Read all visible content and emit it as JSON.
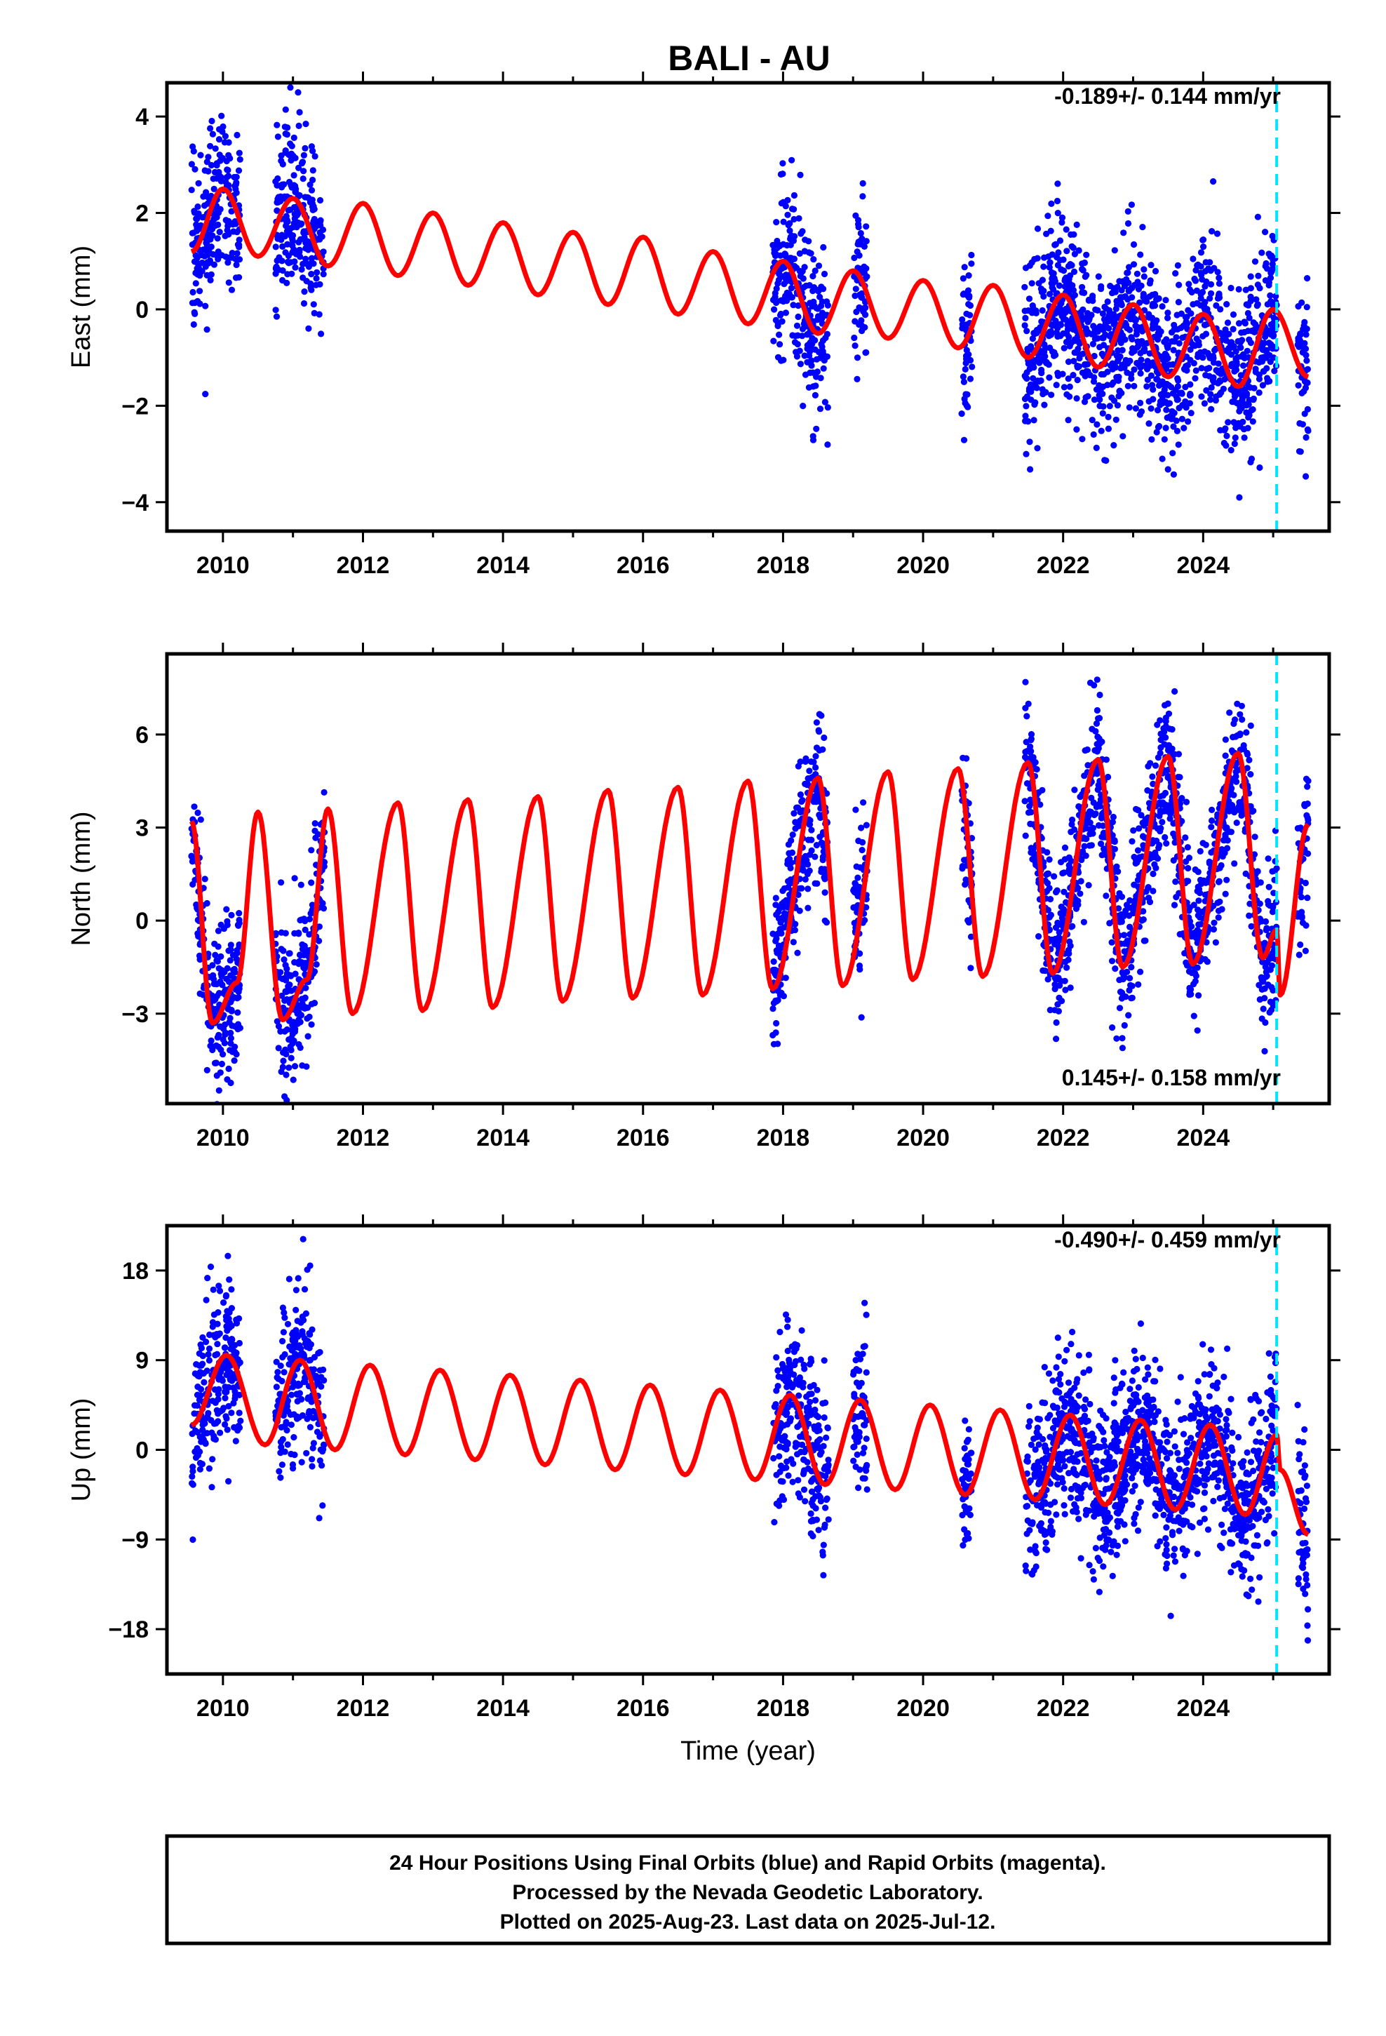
{
  "title": "BALI - AU",
  "footer": {
    "line1": "24 Hour Positions Using Final Orbits (blue) and Rapid Orbits (magenta).",
    "line2": "Processed by the Nevada Geodetic Laboratory.",
    "line3": "Plotted on 2025-Aug-23. Last data on 2025-Jul-12."
  },
  "colors": {
    "data": "#0000ff",
    "model": "#ff0000",
    "marker": "#00e5ff",
    "frame": "#000000"
  },
  "chart_data": [
    {
      "type": "scatter",
      "ylabel": "East (mm)",
      "xlabel": "",
      "rate": "-0.189+/- 0.144 mm/yr",
      "xlim": [
        2009.2,
        2025.8
      ],
      "ylim": [
        -4.6,
        4.7
      ],
      "yticks": [
        4,
        2,
        0,
        -2,
        -4
      ],
      "yticklabels": [
        "4",
        "2",
        "0",
        "−2",
        "−4"
      ],
      "xticks": [
        2010,
        2012,
        2014,
        2016,
        2018,
        2020,
        2022,
        2024
      ],
      "xticklabels": [
        "2010",
        "2012",
        "2014",
        "2016",
        "2018",
        "2020",
        "2022",
        "2024"
      ],
      "marker_x": 2025.05,
      "legend": "none",
      "series": [
        {
          "kind": "observations",
          "segments": [
            [
              2009.55,
              2010.25
            ],
            [
              2010.75,
              2011.45
            ],
            [
              2017.85,
              2018.65
            ],
            [
              2019.0,
              2019.2
            ],
            [
              2020.55,
              2020.7
            ],
            [
              2021.45,
              2025.05
            ],
            [
              2025.35,
              2025.5
            ]
          ]
        },
        {
          "kind": "model",
          "x": [
            2009.55,
            2010.0,
            2010.5,
            2011.0,
            2011.5,
            2012.0,
            2012.5,
            2013.0,
            2013.5,
            2014.0,
            2014.5,
            2015.0,
            2015.5,
            2016.0,
            2016.5,
            2017.0,
            2017.5,
            2018.0,
            2018.5,
            2019.0,
            2019.5,
            2020.0,
            2020.5,
            2021.0,
            2021.5,
            2022.0,
            2022.5,
            2023.0,
            2023.5,
            2024.0,
            2024.5,
            2025.0,
            2025.5
          ],
          "y": [
            1.2,
            2.5,
            1.1,
            2.3,
            0.9,
            2.2,
            0.7,
            2.0,
            0.5,
            1.8,
            0.3,
            1.6,
            0.1,
            1.5,
            -0.1,
            1.2,
            -0.3,
            1.0,
            -0.5,
            0.8,
            -0.6,
            0.6,
            -0.8,
            0.5,
            -1.0,
            0.3,
            -1.2,
            0.1,
            -1.4,
            -0.1,
            -1.6,
            0.0,
            -1.4
          ]
        }
      ]
    },
    {
      "type": "scatter",
      "ylabel": "North (mm)",
      "xlabel": "",
      "rate": "0.145+/- 0.158 mm/yr",
      "xlim": [
        2009.2,
        2025.8
      ],
      "ylim": [
        -5.9,
        8.6
      ],
      "yticks": [
        6,
        3,
        0,
        -3
      ],
      "yticklabels": [
        "6",
        "3",
        "0",
        "−3"
      ],
      "xticks": [
        2010,
        2012,
        2014,
        2016,
        2018,
        2020,
        2022,
        2024
      ],
      "xticklabels": [
        "2010",
        "2012",
        "2014",
        "2016",
        "2018",
        "2020",
        "2022",
        "2024"
      ],
      "marker_x": 2025.05,
      "legend": "none",
      "series": [
        {
          "kind": "observations",
          "segments": [
            [
              2009.55,
              2010.25
            ],
            [
              2010.75,
              2011.45
            ],
            [
              2017.85,
              2018.65
            ],
            [
              2019.0,
              2019.2
            ],
            [
              2020.55,
              2020.7
            ],
            [
              2021.45,
              2025.05
            ],
            [
              2025.35,
              2025.5
            ]
          ]
        },
        {
          "kind": "model",
          "x": [
            2009.55,
            2009.85,
            2010.2,
            2010.5,
            2010.85,
            2011.2,
            2011.5,
            2011.85,
            2012.5,
            2012.85,
            2013.5,
            2013.85,
            2014.5,
            2014.85,
            2015.5,
            2015.85,
            2016.5,
            2016.85,
            2017.5,
            2017.85,
            2018.5,
            2018.85,
            2019.5,
            2019.85,
            2020.5,
            2020.85,
            2021.5,
            2021.85,
            2022.5,
            2022.85,
            2023.5,
            2023.85,
            2024.5,
            2024.85,
            2025.05,
            2025.1,
            2025.5
          ],
          "y": [
            3.2,
            -3.3,
            -2.0,
            3.5,
            -3.2,
            -1.9,
            3.6,
            -3.0,
            3.8,
            -2.9,
            3.9,
            -2.8,
            4.0,
            -2.6,
            4.2,
            -2.5,
            4.3,
            -2.4,
            4.5,
            -2.2,
            4.6,
            -2.1,
            4.8,
            -1.9,
            4.9,
            -1.8,
            5.1,
            -1.7,
            5.2,
            -1.5,
            5.3,
            -1.4,
            5.4,
            -1.2,
            -0.3,
            -2.4,
            3.1
          ]
        }
      ]
    },
    {
      "type": "scatter",
      "ylabel": "Up (mm)",
      "xlabel": "Time (year)",
      "rate": "-0.490+/- 0.459 mm/yr",
      "xlim": [
        2009.2,
        2025.8
      ],
      "ylim": [
        -22.5,
        22.5
      ],
      "yticks": [
        18,
        9,
        0,
        -9,
        -18
      ],
      "yticklabels": [
        "18",
        "9",
        "0",
        "−9",
        "−18"
      ],
      "xticks": [
        2010,
        2012,
        2014,
        2016,
        2018,
        2020,
        2022,
        2024
      ],
      "xticklabels": [
        "2010",
        "2012",
        "2014",
        "2016",
        "2018",
        "2020",
        "2022",
        "2024"
      ],
      "marker_x": 2025.05,
      "legend": "none",
      "series": [
        {
          "kind": "observations",
          "segments": [
            [
              2009.55,
              2010.25
            ],
            [
              2010.75,
              2011.45
            ],
            [
              2017.85,
              2018.65
            ],
            [
              2019.0,
              2019.2
            ],
            [
              2020.55,
              2020.7
            ],
            [
              2021.45,
              2025.05
            ],
            [
              2025.35,
              2025.5
            ]
          ]
        },
        {
          "kind": "model",
          "x": [
            2009.55,
            2010.05,
            2010.6,
            2011.1,
            2011.6,
            2012.1,
            2012.6,
            2013.1,
            2013.6,
            2014.1,
            2014.6,
            2015.1,
            2015.6,
            2016.1,
            2016.6,
            2017.1,
            2017.6,
            2018.1,
            2018.6,
            2019.1,
            2019.6,
            2020.1,
            2020.6,
            2021.1,
            2021.6,
            2022.1,
            2022.6,
            2023.1,
            2023.6,
            2024.1,
            2024.6,
            2025.05,
            2025.1,
            2025.5
          ],
          "y": [
            2.5,
            9.5,
            0.5,
            9.0,
            0.0,
            8.5,
            -0.5,
            8.0,
            -1.0,
            7.5,
            -1.5,
            7.0,
            -2.0,
            6.5,
            -2.5,
            6.0,
            -3.0,
            5.5,
            -3.5,
            5.0,
            -4.0,
            4.5,
            -4.5,
            4.0,
            -5.0,
            3.5,
            -5.5,
            3.0,
            -6.0,
            2.5,
            -6.5,
            1.5,
            -2.0,
            -8.5
          ]
        }
      ]
    }
  ]
}
